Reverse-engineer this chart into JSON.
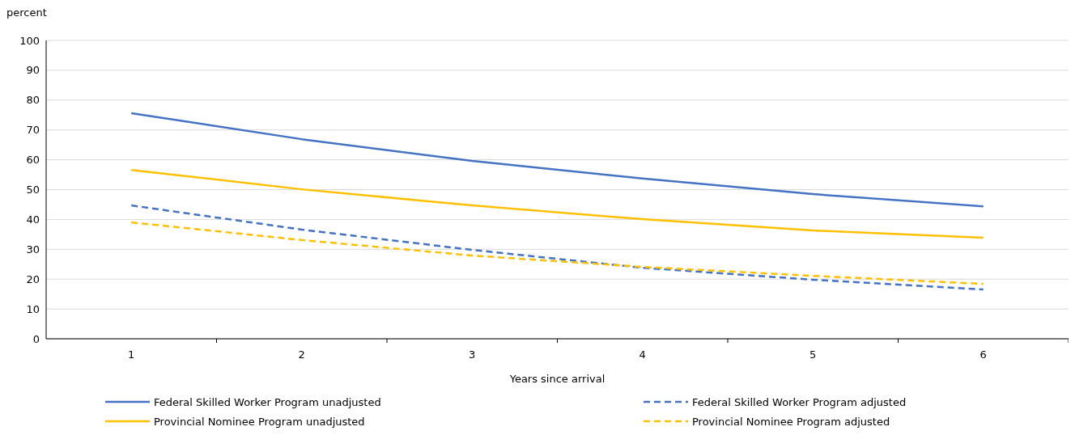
{
  "chart_data": {
    "type": "line",
    "ylabel": "percent",
    "xlabel": "Years since arrival",
    "categories": [
      "1",
      "2",
      "3",
      "4",
      "5",
      "6"
    ],
    "ylim": [
      0,
      100
    ],
    "yticks": [
      0,
      10,
      20,
      30,
      40,
      50,
      60,
      70,
      80,
      90,
      100
    ],
    "grid": "y",
    "legend": "bottom",
    "marker": "none",
    "series": [
      {
        "name": "Federal Skilled Worker Program unadjusted",
        "color": "#4472c4",
        "line_style": "solid",
        "values": [
          75.6,
          66.9,
          59.6,
          53.7,
          48.5,
          44.4
        ]
      },
      {
        "name": "Federal Skilled Worker Program adjusted",
        "color": "#4472c4",
        "line_style": "dashed",
        "values": [
          44.7,
          36.6,
          29.8,
          23.8,
          19.8,
          16.5
        ]
      },
      {
        "name": "Provincial Nominee Program unadjusted",
        "color": "#ffc000",
        "line_style": "solid",
        "values": [
          56.6,
          50.1,
          44.7,
          40.1,
          36.3,
          33.9
        ]
      },
      {
        "name": "Provincial Nominee Program adjusted",
        "color": "#ffc000",
        "line_style": "dashed",
        "values": [
          39.0,
          33.1,
          27.9,
          24.1,
          21.1,
          18.4
        ]
      }
    ]
  }
}
